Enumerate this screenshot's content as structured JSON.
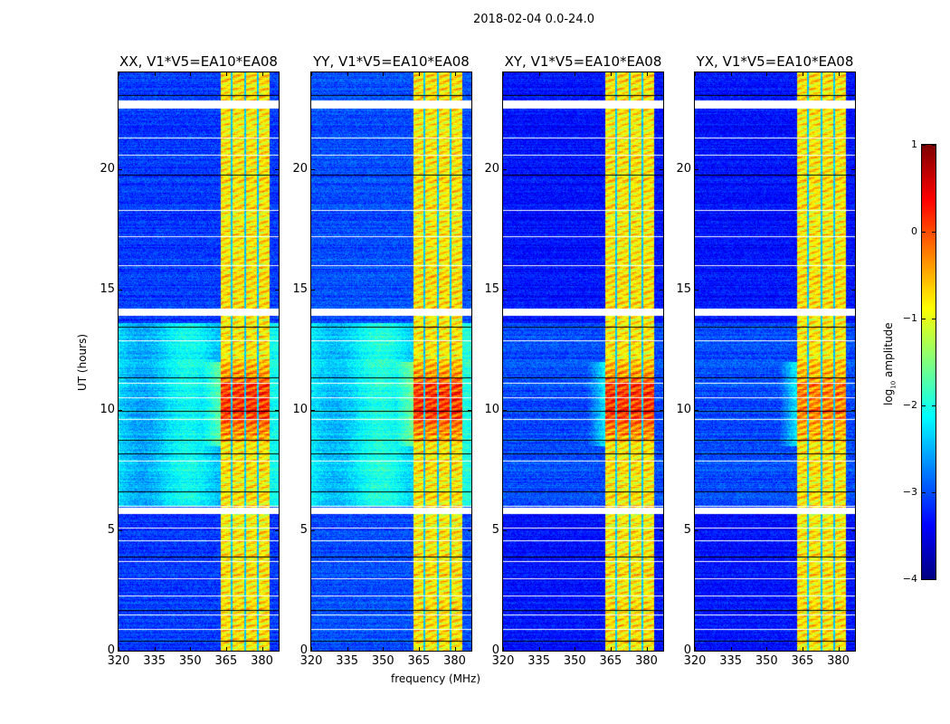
{
  "chart_data": {
    "type": "heatmap",
    "title": "2018-02-04 0.0-24.0",
    "xlabel": "frequency (MHz)",
    "ylabel": "UT (hours)",
    "xlim": [
      320,
      387
    ],
    "ylim": [
      0,
      24
    ],
    "xticks": [
      320,
      335,
      350,
      365,
      380
    ],
    "yticks": [
      0,
      5,
      10,
      15,
      20
    ],
    "xtick_labels": [
      "320",
      "335",
      "350",
      "365",
      "380"
    ],
    "ytick_labels": [
      "0",
      "5",
      "10",
      "15",
      "20"
    ],
    "panels": [
      {
        "title": "XX, V1*V5=EA10*EA08",
        "background_level": -3.1,
        "daytime_background_level": -2.3
      },
      {
        "title": "YY, V1*V5=EA10*EA08",
        "background_level": -3.0,
        "daytime_background_level": -2.2
      },
      {
        "title": "XY, V1*V5=EA10*EA08",
        "background_level": -3.3,
        "daytime_background_level": -3.0
      },
      {
        "title": "YX, V1*V5=EA10*EA08",
        "background_level": -3.3,
        "daytime_background_level": -3.0
      }
    ],
    "rfi_band_mhz": [
      362.6,
      383
    ],
    "rfi_band_level": -0.8,
    "rfi_band_gaps_mhz": [
      367.2,
      372.9,
      378.2
    ],
    "strong_rfi_hours": [
      8.5,
      12.0
    ],
    "strong_rfi_level": 0.4,
    "flagged_hours_white": [
      22.55,
      22.85,
      14.0,
      14.2,
      5.75,
      6.0,
      21.3,
      20.6,
      18.3,
      17.2,
      16.0,
      12.9,
      11.1,
      10.5,
      9.6,
      7.9,
      5.1,
      4.6,
      3.7,
      3.0,
      2.3,
      1.5,
      0.9
    ],
    "flagged_hours_black": [
      23.05,
      19.75,
      13.45,
      11.35,
      9.95,
      8.75,
      8.2,
      6.6,
      3.9,
      1.7,
      0.4
    ],
    "colorbar": {
      "label": "log10 amplitude",
      "label_main": "log",
      "label_sub": "10",
      "label_rest": " amplitude",
      "colormap": "jet",
      "range": [
        -4,
        1
      ],
      "ticks": [
        "1",
        "0",
        "−1",
        "−2",
        "−3",
        "−4"
      ]
    }
  }
}
